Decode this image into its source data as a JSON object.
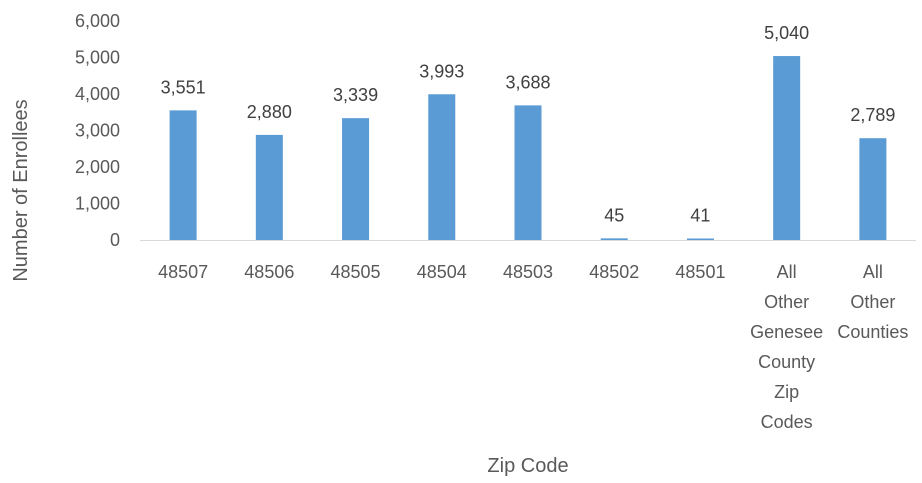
{
  "chart_data": {
    "type": "bar",
    "categories": [
      [
        "48507"
      ],
      [
        "48506"
      ],
      [
        "48505"
      ],
      [
        "48504"
      ],
      [
        "48503"
      ],
      [
        "48502"
      ],
      [
        "48501"
      ],
      [
        "All",
        "Other",
        "Genesee",
        "County",
        "Zip",
        "Codes"
      ],
      [
        "All",
        "Other",
        "Counties"
      ]
    ],
    "values": [
      3551,
      2880,
      3339,
      3993,
      3688,
      45,
      41,
      5040,
      2789
    ],
    "data_labels": [
      "3,551",
      "2,880",
      "3,339",
      "3,993",
      "3,688",
      "45",
      "41",
      "5,040",
      "2,789"
    ],
    "xlabel": "Zip Code",
    "ylabel": "Number of Enrollees",
    "ylim": [
      0,
      6000
    ],
    "yticks": [
      0,
      1000,
      2000,
      3000,
      4000,
      5000,
      6000
    ],
    "ytick_labels": [
      "0",
      "1,000",
      "2,000",
      "3,000",
      "4,000",
      "5,000",
      "6,000"
    ],
    "grid": false,
    "bar_color": "#5B9BD5"
  }
}
